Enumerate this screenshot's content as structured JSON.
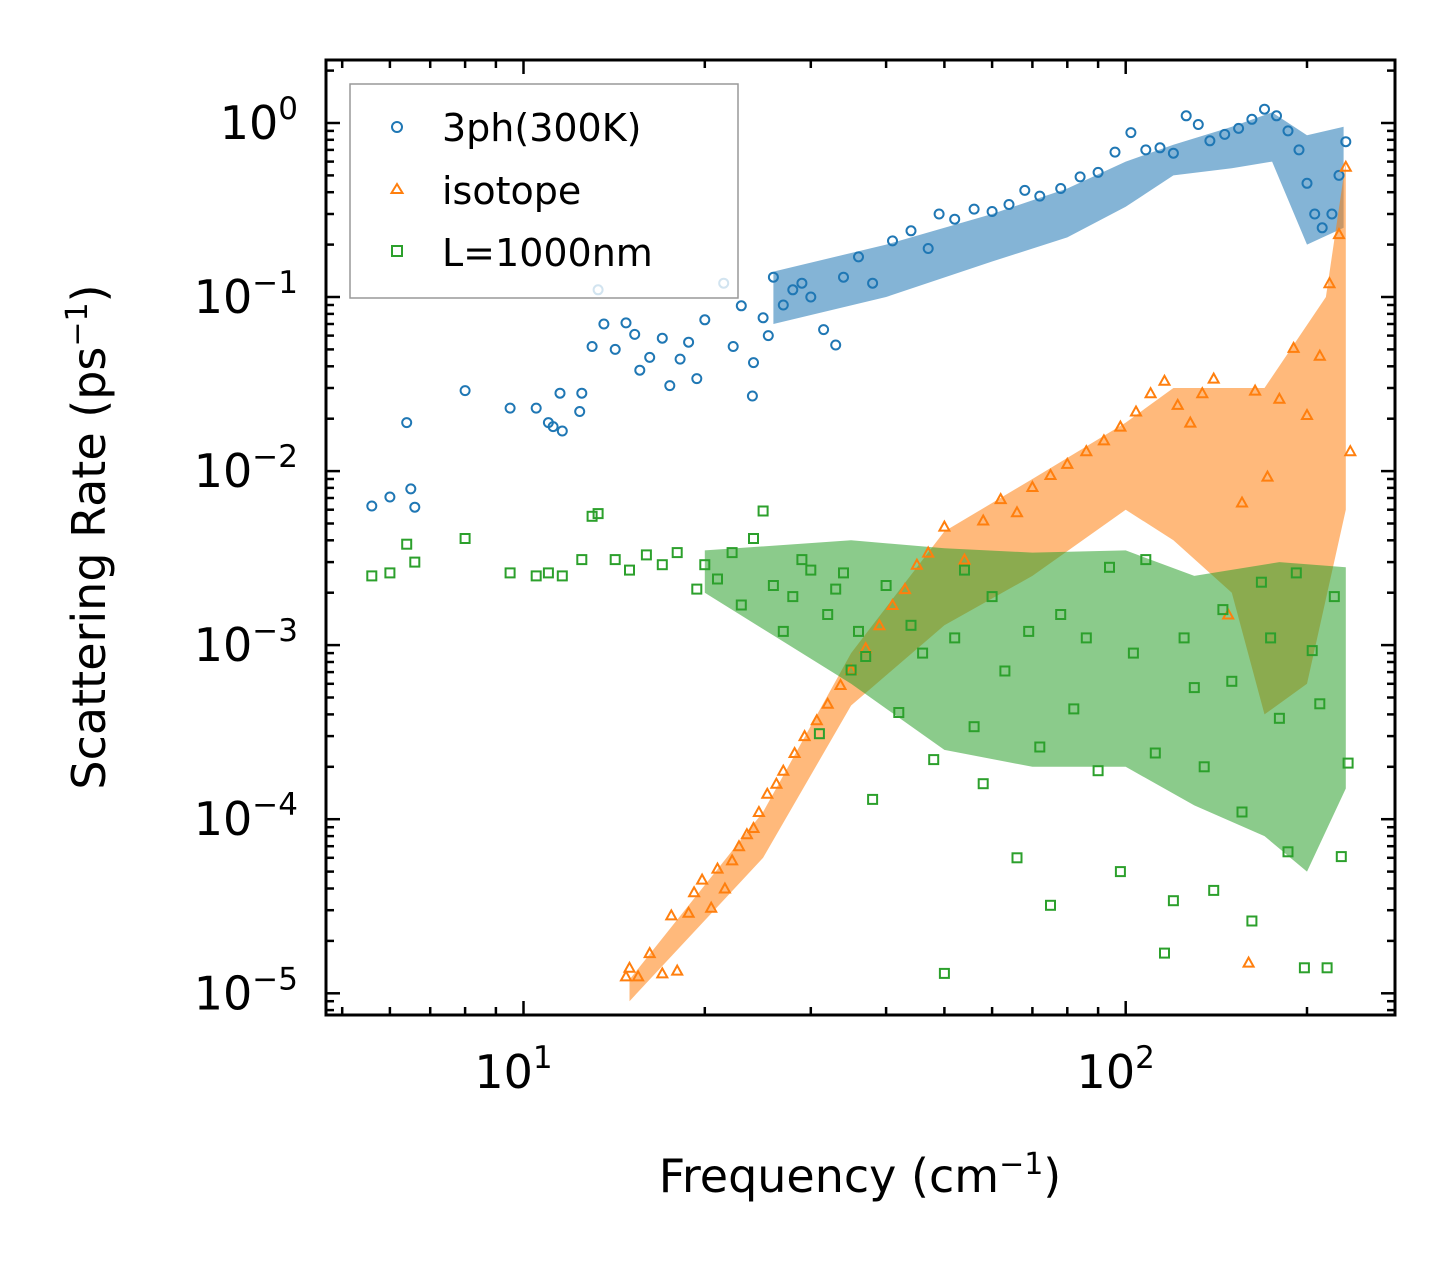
{
  "chart_data": {
    "type": "scatter",
    "title": "",
    "xlabel": "Frequency (cm",
    "xlabel_sup": "−1",
    "xlabel_close": ")",
    "ylabel": "Scattering Rate (ps",
    "ylabel_sup": "−1",
    "ylabel_close": ")",
    "xscale": "log",
    "yscale": "log",
    "xlim": [
      4.7,
      280
    ],
    "ylim": [
      7.5e-06,
      2.3
    ],
    "x_ticks": [
      {
        "value": 10,
        "base": "10",
        "exp": "1"
      },
      {
        "value": 100,
        "base": "10",
        "exp": "2"
      }
    ],
    "y_ticks": [
      {
        "value": 1,
        "base": "10",
        "exp": "0"
      },
      {
        "value": 0.1,
        "base": "10",
        "exp": "−1"
      },
      {
        "value": 0.01,
        "base": "10",
        "exp": "−2"
      },
      {
        "value": 0.001,
        "base": "10",
        "exp": "−3"
      },
      {
        "value": 0.0001,
        "base": "10",
        "exp": "−4"
      },
      {
        "value": 1e-05,
        "base": "10",
        "exp": "−5"
      }
    ],
    "legend_position": "top-left",
    "series": [
      {
        "name": "3ph(300K)",
        "marker": "circle",
        "color": "#1f77b4",
        "points": [
          [
            5.6,
            0.0063
          ],
          [
            6.0,
            0.0071
          ],
          [
            6.5,
            0.0079
          ],
          [
            6.6,
            0.0062
          ],
          [
            6.4,
            0.019
          ],
          [
            8.0,
            0.029
          ],
          [
            9.5,
            0.023
          ],
          [
            10.5,
            0.023
          ],
          [
            11.0,
            0.019
          ],
          [
            11.2,
            0.018
          ],
          [
            11.6,
            0.017
          ],
          [
            11.5,
            0.028
          ],
          [
            12.5,
            0.028
          ],
          [
            12.4,
            0.022
          ],
          [
            13.0,
            0.052
          ],
          [
            13.3,
            0.11
          ],
          [
            13.6,
            0.07
          ],
          [
            14.2,
            0.05
          ],
          [
            14.8,
            0.071
          ],
          [
            15.3,
            0.061
          ],
          [
            15.6,
            0.038
          ],
          [
            16.2,
            0.045
          ],
          [
            17.0,
            0.058
          ],
          [
            17.5,
            0.031
          ],
          [
            18.2,
            0.044
          ],
          [
            18.8,
            0.055
          ],
          [
            19.4,
            0.034
          ],
          [
            20.0,
            0.074
          ],
          [
            21.5,
            0.12
          ],
          [
            22.3,
            0.052
          ],
          [
            23.0,
            0.089
          ],
          [
            24.1,
            0.042
          ],
          [
            25.0,
            0.076
          ],
          [
            25.5,
            0.06
          ],
          [
            24.0,
            0.027
          ],
          [
            26.0,
            0.13
          ],
          [
            27.0,
            0.09
          ],
          [
            28.0,
            0.11
          ],
          [
            29.0,
            0.12
          ],
          [
            30.0,
            0.1
          ],
          [
            31.5,
            0.065
          ],
          [
            33.0,
            0.053
          ],
          [
            34.0,
            0.13
          ],
          [
            36.0,
            0.17
          ],
          [
            38.0,
            0.12
          ],
          [
            41.0,
            0.21
          ],
          [
            44.0,
            0.24
          ],
          [
            47.0,
            0.19
          ],
          [
            49.0,
            0.3
          ],
          [
            52.0,
            0.28
          ],
          [
            56.0,
            0.32
          ],
          [
            60.0,
            0.31
          ],
          [
            64.0,
            0.34
          ],
          [
            68.0,
            0.41
          ],
          [
            72.0,
            0.38
          ],
          [
            78.0,
            0.42
          ],
          [
            84.0,
            0.49
          ],
          [
            90.0,
            0.52
          ],
          [
            96.0,
            0.68
          ],
          [
            102.0,
            0.88
          ],
          [
            108.0,
            0.7
          ],
          [
            114.0,
            0.72
          ],
          [
            120.0,
            0.67
          ],
          [
            126.0,
            1.1
          ],
          [
            132.0,
            0.98
          ],
          [
            138.0,
            0.79
          ],
          [
            146.0,
            0.86
          ],
          [
            154.0,
            0.93
          ],
          [
            162.0,
            1.05
          ],
          [
            170.0,
            1.2
          ],
          [
            178.0,
            1.1
          ],
          [
            186.0,
            0.9
          ],
          [
            194.0,
            0.7
          ],
          [
            200.0,
            0.45
          ],
          [
            206.0,
            0.3
          ],
          [
            212.0,
            0.25
          ],
          [
            220.0,
            0.3
          ],
          [
            226.0,
            0.5
          ],
          [
            232.0,
            0.78
          ]
        ]
      },
      {
        "name": "isotope",
        "marker": "triangle",
        "color": "#ff7f0e",
        "points": [
          [
            14.8,
            1.25e-05
          ],
          [
            15.0,
            1.4e-05
          ],
          [
            15.5,
            1.25e-05
          ],
          [
            16.2,
            1.7e-05
          ],
          [
            17.0,
            1.3e-05
          ],
          [
            17.6,
            2.8e-05
          ],
          [
            18.0,
            1.35e-05
          ],
          [
            18.8,
            2.9e-05
          ],
          [
            19.2,
            3.8e-05
          ],
          [
            19.8,
            4.5e-05
          ],
          [
            20.5,
            3.1e-05
          ],
          [
            21.0,
            5.2e-05
          ],
          [
            21.6,
            4e-05
          ],
          [
            22.2,
            5.8e-05
          ],
          [
            22.8,
            7e-05
          ],
          [
            23.5,
            8.2e-05
          ],
          [
            24.1,
            8.9e-05
          ],
          [
            24.6,
            0.00011
          ],
          [
            25.4,
            0.00014
          ],
          [
            26.3,
            0.00016
          ],
          [
            27.0,
            0.00019
          ],
          [
            28.2,
            0.00024
          ],
          [
            29.3,
            0.0003
          ],
          [
            30.7,
            0.00037
          ],
          [
            32.0,
            0.00046
          ],
          [
            33.6,
            0.00059
          ],
          [
            35.0,
            0.00072
          ],
          [
            37.0,
            0.00096
          ],
          [
            39.0,
            0.0013
          ],
          [
            41.0,
            0.0017
          ],
          [
            43.0,
            0.0021
          ],
          [
            45.0,
            0.0029
          ],
          [
            47.0,
            0.0034
          ],
          [
            50.0,
            0.0048
          ],
          [
            54.0,
            0.0031
          ],
          [
            58.0,
            0.0052
          ],
          [
            62.0,
            0.0069
          ],
          [
            66.0,
            0.0058
          ],
          [
            70.0,
            0.0081
          ],
          [
            75.0,
            0.0095
          ],
          [
            80.0,
            0.011
          ],
          [
            86.0,
            0.013
          ],
          [
            92.0,
            0.015
          ],
          [
            98.0,
            0.018
          ],
          [
            104.0,
            0.022
          ],
          [
            110.0,
            0.028
          ],
          [
            116.0,
            0.033
          ],
          [
            122.0,
            0.024
          ],
          [
            128.0,
            0.019
          ],
          [
            134.0,
            0.028
          ],
          [
            140.0,
            0.034
          ],
          [
            148.0,
            0.0015
          ],
          [
            156.0,
            0.0066
          ],
          [
            164.0,
            0.029
          ],
          [
            172.0,
            0.0093
          ],
          [
            180.0,
            0.026
          ],
          [
            190.0,
            0.051
          ],
          [
            200.0,
            0.021
          ],
          [
            210.0,
            0.046
          ],
          [
            218.0,
            0.12
          ],
          [
            226.0,
            0.23
          ],
          [
            232.0,
            0.56
          ],
          [
            236.0,
            0.013
          ],
          [
            160.0,
            1.5e-05
          ]
        ]
      },
      {
        "name": "L=1000nm",
        "marker": "square",
        "color": "#2ca02c",
        "points": [
          [
            5.6,
            0.0025
          ],
          [
            6.0,
            0.0026
          ],
          [
            6.4,
            0.0038
          ],
          [
            6.6,
            0.003
          ],
          [
            8.0,
            0.0041
          ],
          [
            9.5,
            0.0026
          ],
          [
            10.5,
            0.0025
          ],
          [
            11.0,
            0.0026
          ],
          [
            11.6,
            0.0025
          ],
          [
            12.5,
            0.0031
          ],
          [
            13.0,
            0.0055
          ],
          [
            13.3,
            0.0057
          ],
          [
            14.2,
            0.0031
          ],
          [
            15.0,
            0.0027
          ],
          [
            16.0,
            0.0033
          ],
          [
            17.0,
            0.0029
          ],
          [
            18.0,
            0.0034
          ],
          [
            19.4,
            0.0021
          ],
          [
            20.0,
            0.0029
          ],
          [
            21.0,
            0.0024
          ],
          [
            22.2,
            0.0034
          ],
          [
            23.0,
            0.0017
          ],
          [
            24.1,
            0.0041
          ],
          [
            25.0,
            0.0059
          ],
          [
            26.0,
            0.0022
          ],
          [
            27.0,
            0.0012
          ],
          [
            28.0,
            0.0019
          ],
          [
            29.0,
            0.0031
          ],
          [
            30.0,
            0.0027
          ],
          [
            31.0,
            0.00031
          ],
          [
            32.0,
            0.0015
          ],
          [
            33.0,
            0.0021
          ],
          [
            34.0,
            0.0026
          ],
          [
            35.0,
            0.00072
          ],
          [
            36.0,
            0.0012
          ],
          [
            37.0,
            0.00086
          ],
          [
            38.0,
            0.00013
          ],
          [
            40.0,
            0.0022
          ],
          [
            42.0,
            0.00041
          ],
          [
            44.0,
            0.0013
          ],
          [
            46.0,
            0.0009
          ],
          [
            48.0,
            0.00022
          ],
          [
            50.0,
            1.3e-05
          ],
          [
            52.0,
            0.0011
          ],
          [
            54.0,
            0.0027
          ],
          [
            56.0,
            0.00034
          ],
          [
            58.0,
            0.00016
          ],
          [
            60.0,
            0.0019
          ],
          [
            63.0,
            0.00071
          ],
          [
            66.0,
            6e-05
          ],
          [
            69.0,
            0.0012
          ],
          [
            72.0,
            0.00026
          ],
          [
            75.0,
            3.2e-05
          ],
          [
            78.0,
            0.0015
          ],
          [
            82.0,
            0.00043
          ],
          [
            86.0,
            0.0011
          ],
          [
            90.0,
            0.00019
          ],
          [
            94.0,
            0.0028
          ],
          [
            98.0,
            5e-05
          ],
          [
            103.0,
            0.0009
          ],
          [
            108.0,
            0.0031
          ],
          [
            112.0,
            0.00024
          ],
          [
            116.0,
            1.7e-05
          ],
          [
            120.0,
            3.4e-05
          ],
          [
            125.0,
            0.0011
          ],
          [
            130.0,
            0.00057
          ],
          [
            135.0,
            0.0002
          ],
          [
            140.0,
            3.9e-05
          ],
          [
            145.0,
            0.0016
          ],
          [
            150.0,
            0.00062
          ],
          [
            156.0,
            0.00011
          ],
          [
            162.0,
            2.6e-05
          ],
          [
            168.0,
            0.0023
          ],
          [
            174.0,
            0.0011
          ],
          [
            180.0,
            0.00038
          ],
          [
            186.0,
            6.5e-05
          ],
          [
            192.0,
            0.0026
          ],
          [
            198.0,
            1.4e-05
          ],
          [
            204.0,
            0.00093
          ],
          [
            210.0,
            0.00046
          ],
          [
            216.0,
            1.4e-05
          ],
          [
            222.0,
            0.0019
          ],
          [
            228.0,
            6.1e-05
          ],
          [
            234.0,
            0.00021
          ]
        ]
      }
    ]
  }
}
